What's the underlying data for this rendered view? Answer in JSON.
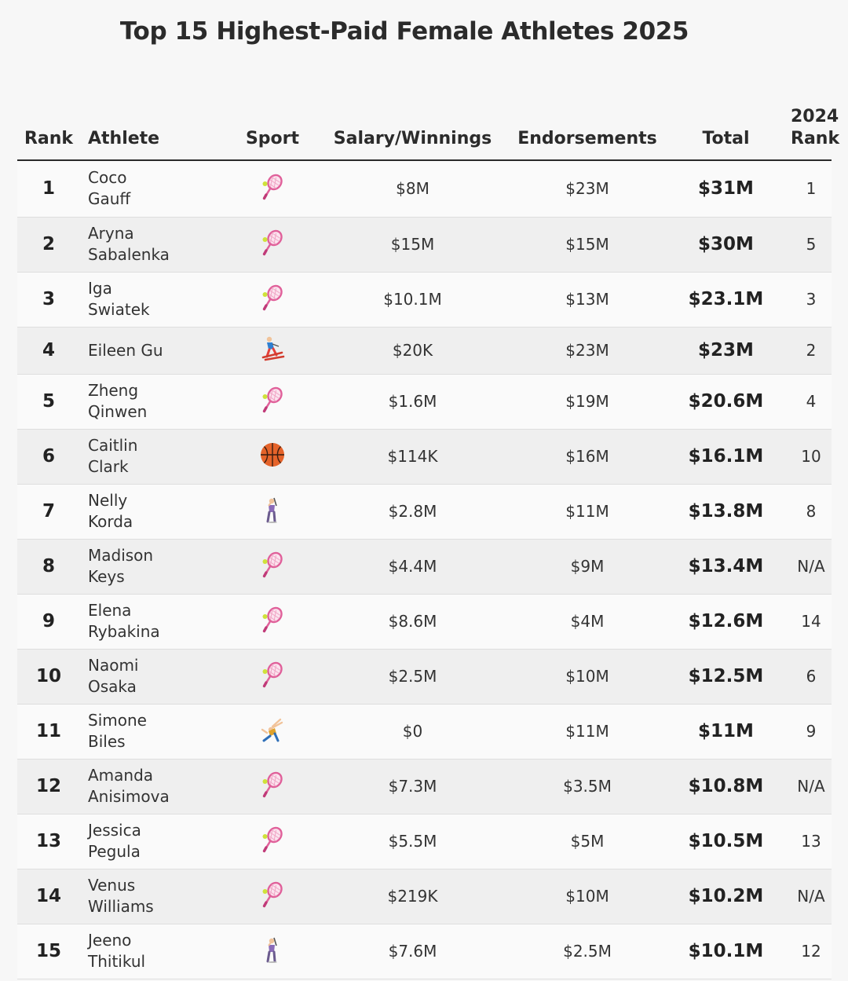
{
  "title": "Top 15 Highest-Paid Female Athletes 2025",
  "headers": {
    "rank": "Rank",
    "athlete": "Athlete",
    "sport": "Sport",
    "salary": "Salary/Winnings",
    "endorsements": "Endorsements",
    "total": "Total",
    "prev_rank_line1": "2024",
    "prev_rank_line2": "Rank"
  },
  "colors": {
    "racket": "#e0609a",
    "basketball": "#e5632a",
    "accent_text": "#222222"
  },
  "chart_data": {
    "type": "table",
    "title": "Top 15 Highest-Paid Female Athletes 2025",
    "columns": [
      "Rank",
      "Athlete",
      "Sport",
      "Salary/Winnings",
      "Endorsements",
      "Total",
      "2024 Rank"
    ],
    "rows": [
      {
        "rank": "1",
        "first": "Coco",
        "last": "Gauff",
        "sport_icon": "tennis-racket-icon",
        "salary": "$8M",
        "endorsements": "$23M",
        "total": "$31M",
        "prev": "1"
      },
      {
        "rank": "2",
        "first": "Aryna",
        "last": "Sabalenka",
        "sport_icon": "tennis-racket-icon",
        "salary": "$15M",
        "endorsements": "$15M",
        "total": "$30M",
        "prev": "5"
      },
      {
        "rank": "3",
        "first": "Iga",
        "last": "Swiatek",
        "sport_icon": "tennis-racket-icon",
        "salary": "$10.1M",
        "endorsements": "$13M",
        "total": "$23.1M",
        "prev": "3"
      },
      {
        "rank": "4",
        "first": "Eileen Gu",
        "last": "",
        "sport_icon": "skier-icon",
        "salary": "$20K",
        "endorsements": "$23M",
        "total": "$23M",
        "prev": "2"
      },
      {
        "rank": "5",
        "first": "Zheng",
        "last": "Qinwen",
        "sport_icon": "tennis-racket-icon",
        "salary": "$1.6M",
        "endorsements": "$19M",
        "total": "$20.6M",
        "prev": "4"
      },
      {
        "rank": "6",
        "first": "Caitlin",
        "last": "Clark",
        "sport_icon": "basketball-icon",
        "salary": "$114K",
        "endorsements": "$16M",
        "total": "$16.1M",
        "prev": "10"
      },
      {
        "rank": "7",
        "first": "Nelly",
        "last": "Korda",
        "sport_icon": "golfer-icon",
        "salary": "$2.8M",
        "endorsements": "$11M",
        "total": "$13.8M",
        "prev": "8"
      },
      {
        "rank": "8",
        "first": "Madison",
        "last": "Keys",
        "sport_icon": "tennis-racket-icon",
        "salary": "$4.4M",
        "endorsements": "$9M",
        "total": "$13.4M",
        "prev": "N/A"
      },
      {
        "rank": "9",
        "first": "Elena",
        "last": "Rybakina",
        "sport_icon": "tennis-racket-icon",
        "salary": "$8.6M",
        "endorsements": "$4M",
        "total": "$12.6M",
        "prev": "14"
      },
      {
        "rank": "10",
        "first": "Naomi",
        "last": "Osaka",
        "sport_icon": "tennis-racket-icon",
        "salary": "$2.5M",
        "endorsements": "$10M",
        "total": "$12.5M",
        "prev": "6"
      },
      {
        "rank": "11",
        "first": "Simone",
        "last": "Biles",
        "sport_icon": "gymnast-icon",
        "salary": "$0",
        "endorsements": "$11M",
        "total": "$11M",
        "prev": "9"
      },
      {
        "rank": "12",
        "first": "Amanda",
        "last": "Anisimova",
        "sport_icon": "tennis-racket-icon",
        "salary": "$7.3M",
        "endorsements": "$3.5M",
        "total": "$10.8M",
        "prev": "N/A"
      },
      {
        "rank": "13",
        "first": "Jessica",
        "last": "Pegula",
        "sport_icon": "tennis-racket-icon",
        "salary": "$5.5M",
        "endorsements": "$5M",
        "total": "$10.5M",
        "prev": "13"
      },
      {
        "rank": "14",
        "first": "Venus",
        "last": "Williams",
        "sport_icon": "tennis-racket-icon",
        "salary": "$219K",
        "endorsements": "$10M",
        "total": "$10.2M",
        "prev": "N/A"
      },
      {
        "rank": "15",
        "first": "Jeeno",
        "last": "Thitikul",
        "sport_icon": "golfer-icon",
        "salary": "$7.6M",
        "endorsements": "$2.5M",
        "total": "$10.1M",
        "prev": "12"
      }
    ]
  }
}
